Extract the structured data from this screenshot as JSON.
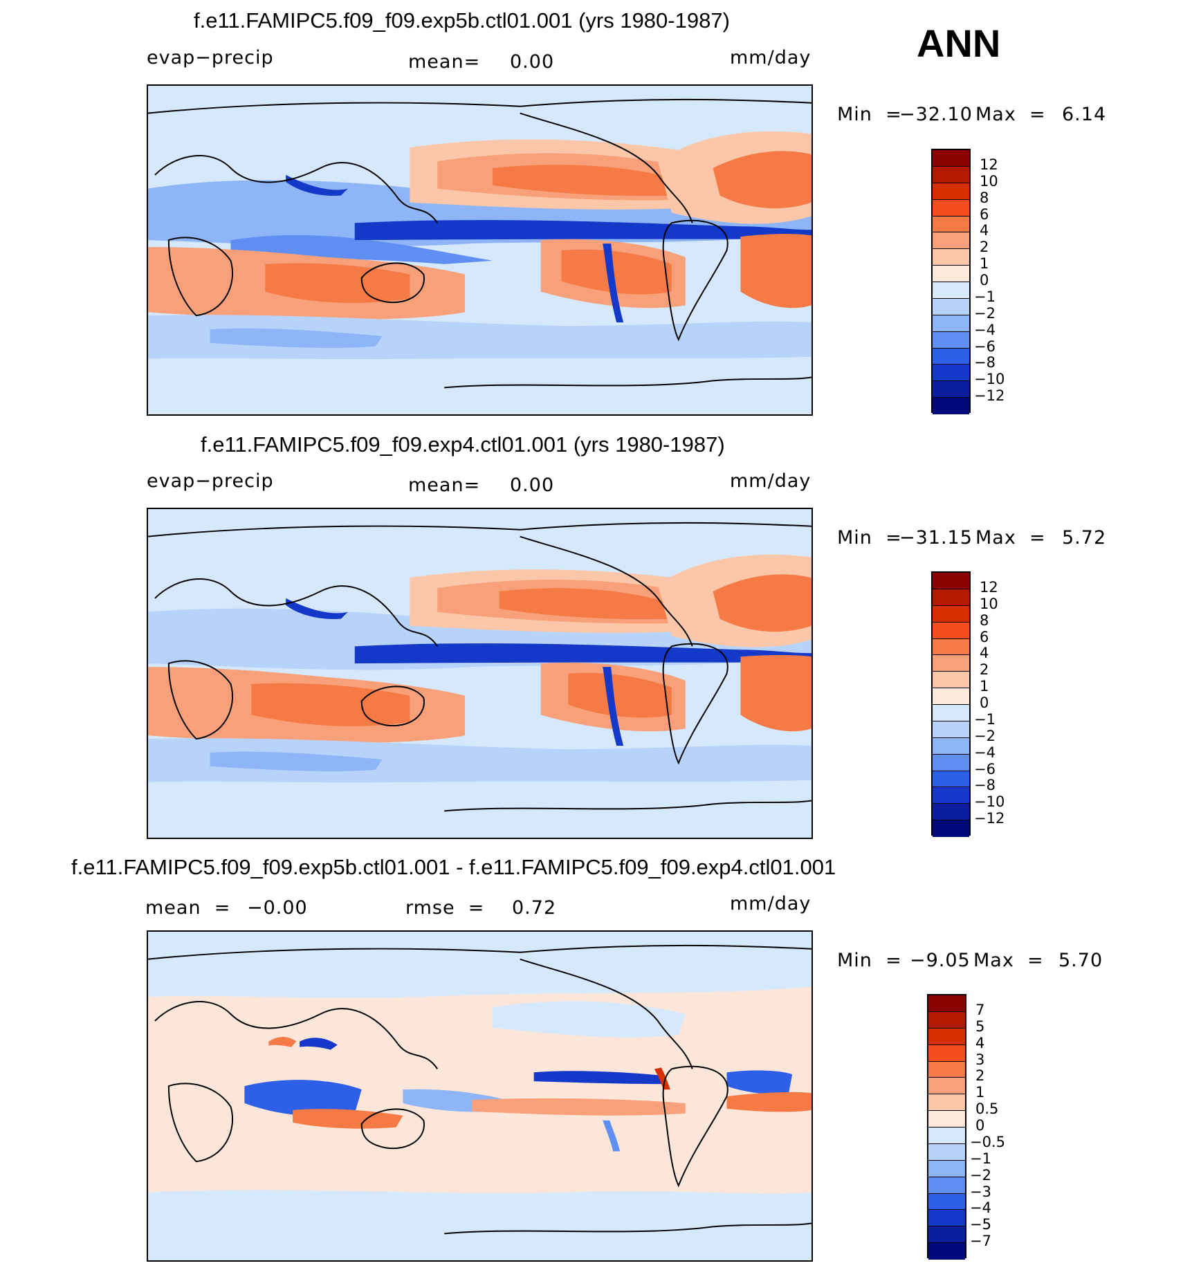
{
  "season": "ANN",
  "chart_data": [
    {
      "type": "heatmap",
      "title": "f.e11.FAMIPC5.f09_f09.exp5b.ctl01.001 (yrs 1980-1987)",
      "variable": "evap−precip",
      "mean_label": "mean=",
      "mean_value": "0.00",
      "units": "mm/day",
      "min_label": "Min  =",
      "min_value": "−32.10",
      "max_label": "Max  =",
      "max_value": "6.14",
      "colorbar": {
        "levels": [
          "12",
          "10",
          "8",
          "6",
          "4",
          "2",
          "1",
          "0",
          "−1",
          "−2",
          "−4",
          "−6",
          "−8",
          "−10",
          "−12"
        ],
        "colors": [
          "#8b0000",
          "#b21a00",
          "#d63000",
          "#f24e1e",
          "#f57a45",
          "#f7a07a",
          "#fbc7a8",
          "#feeadb",
          "#d6e8fb",
          "#b8d3fa",
          "#8db5f7",
          "#5f8ff3",
          "#2e5fe8",
          "#1438c8",
          "#0a1e9e",
          "#000a78"
        ]
      }
    },
    {
      "type": "heatmap",
      "title": "f.e11.FAMIPC5.f09_f09.exp4.ctl01.001 (yrs 1980-1987)",
      "variable": "evap−precip",
      "mean_label": "mean=",
      "mean_value": "0.00",
      "units": "mm/day",
      "min_label": "Min  =",
      "min_value": "−31.15",
      "max_label": "Max  =",
      "max_value": "5.72",
      "colorbar": {
        "levels": [
          "12",
          "10",
          "8",
          "6",
          "4",
          "2",
          "1",
          "0",
          "−1",
          "−2",
          "−4",
          "−6",
          "−8",
          "−10",
          "−12"
        ],
        "colors": [
          "#8b0000",
          "#b21a00",
          "#d63000",
          "#f24e1e",
          "#f57a45",
          "#f7a07a",
          "#fbc7a8",
          "#feeadb",
          "#d6e8fb",
          "#b8d3fa",
          "#8db5f7",
          "#5f8ff3",
          "#2e5fe8",
          "#1438c8",
          "#0a1e9e",
          "#000a78"
        ]
      }
    },
    {
      "type": "heatmap",
      "title": "f.e11.FAMIPC5.f09_f09.exp5b.ctl01.001 - f.e11.FAMIPC5.f09_f09.exp4.ctl01.001",
      "mean_label": "mean  =",
      "mean_value": "−0.00",
      "rmse_label": "rmse  =",
      "rmse_value": "0.72",
      "units": "mm/day",
      "min_label": "Min  =",
      "min_value": "−9.05",
      "max_label": "Max  =",
      "max_value": "5.70",
      "colorbar": {
        "levels": [
          "7",
          "5",
          "4",
          "3",
          "2",
          "1",
          "0.5",
          "0",
          "−0.5",
          "−1",
          "−2",
          "−3",
          "−4",
          "−5",
          "−7"
        ],
        "colors": [
          "#8b0000",
          "#b21a00",
          "#d63000",
          "#f24e1e",
          "#f57a45",
          "#f7a07a",
          "#fbc7a8",
          "#feeadb",
          "#d6e8fb",
          "#b8d3fa",
          "#8db5f7",
          "#5f8ff3",
          "#2e5fe8",
          "#1438c8",
          "#0a1e9e",
          "#000a78"
        ]
      }
    }
  ]
}
